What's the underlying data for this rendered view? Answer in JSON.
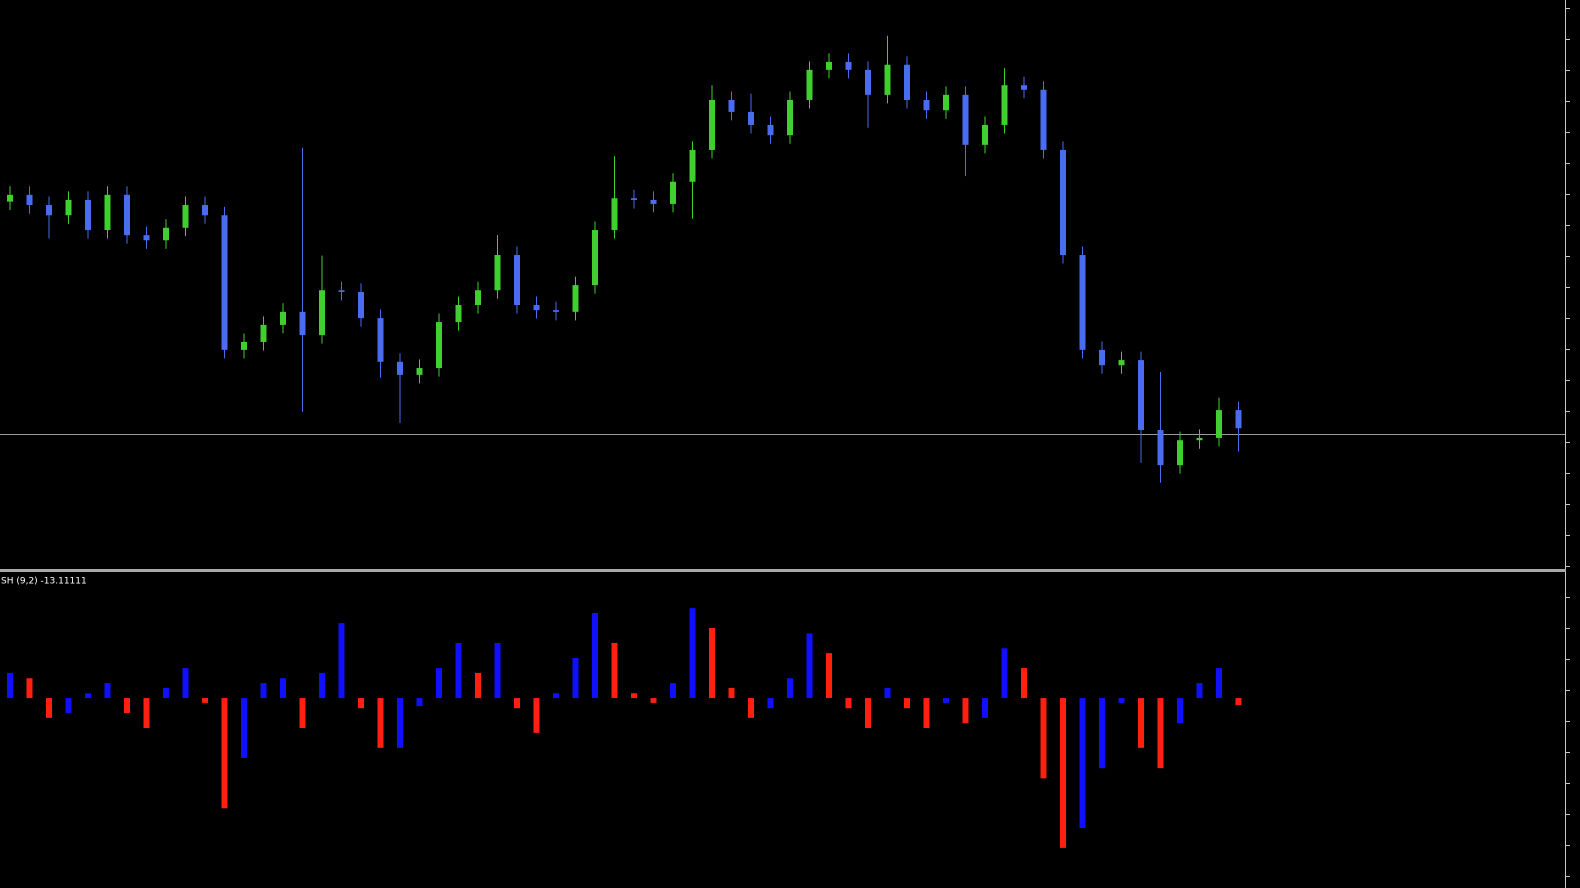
{
  "chart_data": [
    {
      "type": "candlestick",
      "open": [
        64.5,
        65.7,
        63.9,
        62.1,
        64.8,
        59.5,
        65.7,
        58.6,
        57.7,
        59.9,
        63.9,
        62.1,
        38.4,
        39.8,
        42.8,
        45.1,
        41.0,
        48.9,
        48.6,
        44.0,
        36.3,
        34.0,
        35.2,
        43.3,
        46.3,
        48.9,
        55.1,
        46.3,
        45.4,
        45.1,
        49.8,
        59.5,
        65.1,
        64.8,
        64.1,
        68.0,
        73.6,
        82.4,
        80.3,
        78.0,
        76.2,
        82.4,
        87.7,
        89.1,
        87.7,
        83.3,
        88.6,
        82.4,
        80.6,
        83.3,
        74.5,
        78.0,
        85.0,
        84.2,
        73.6,
        55.1,
        38.4,
        35.7,
        36.6,
        24.3,
        18.1,
        22.5,
        22.9,
        27.8
      ],
      "high": [
        67.2,
        67.2,
        65.4,
        66.3,
        66.3,
        67.2,
        67.2,
        60.1,
        61.4,
        65.4,
        65.4,
        63.6,
        41.3,
        44.3,
        46.6,
        74.0,
        55.0,
        50.4,
        50.1,
        45.5,
        37.8,
        36.7,
        44.8,
        47.8,
        50.4,
        58.6,
        56.6,
        47.8,
        46.9,
        51.3,
        61.0,
        72.5,
        66.6,
        66.3,
        69.5,
        75.1,
        85.0,
        83.9,
        83.5,
        79.5,
        83.9,
        89.2,
        90.6,
        90.6,
        89.2,
        93.7,
        90.1,
        83.9,
        84.8,
        84.8,
        79.5,
        88.0,
        86.5,
        85.7,
        75.1,
        56.6,
        39.9,
        38.1,
        38.1,
        34.5,
        24.0,
        24.4,
        30.0,
        29.3
      ],
      "low": [
        63.0,
        62.4,
        58.0,
        60.6,
        58.0,
        58.0,
        57.1,
        56.2,
        56.2,
        58.4,
        60.6,
        36.9,
        36.9,
        38.3,
        41.3,
        27.5,
        39.5,
        47.1,
        42.5,
        33.5,
        25.5,
        32.5,
        33.7,
        41.8,
        44.8,
        47.4,
        44.8,
        43.9,
        43.6,
        43.6,
        48.3,
        58.0,
        63.3,
        62.6,
        62.6,
        61.5,
        72.1,
        78.8,
        76.5,
        74.7,
        74.7,
        80.9,
        86.2,
        86.2,
        77.5,
        81.8,
        80.9,
        79.1,
        79.1,
        69.0,
        73.0,
        76.5,
        82.7,
        72.1,
        53.6,
        36.9,
        34.2,
        34.2,
        18.5,
        15.0,
        16.6,
        21.0,
        21.4,
        20.5
      ],
      "close": [
        65.7,
        63.9,
        62.1,
        64.8,
        59.5,
        65.7,
        58.6,
        57.7,
        59.9,
        63.9,
        62.1,
        38.4,
        39.8,
        42.8,
        45.1,
        41.0,
        48.9,
        48.6,
        44.0,
        36.3,
        34.0,
        35.2,
        43.3,
        46.3,
        48.9,
        55.1,
        46.3,
        45.4,
        45.1,
        49.8,
        59.5,
        65.1,
        64.8,
        64.1,
        68.0,
        73.6,
        82.4,
        80.3,
        78.0,
        76.2,
        82.4,
        87.7,
        89.1,
        87.7,
        83.3,
        88.6,
        82.4,
        80.6,
        83.3,
        74.5,
        78.0,
        85.0,
        84.2,
        73.6,
        55.1,
        38.4,
        35.7,
        36.6,
        24.3,
        18.1,
        22.5,
        22.9,
        27.8,
        24.6
      ],
      "ylim": [
        0,
        100
      ],
      "up_color": "#3fcf2f",
      "down_color": "#4a6cf0",
      "price_line": 23.6,
      "price_line_color": "#9a9a9a"
    },
    {
      "type": "bar",
      "title": "SH (9,2) -13.11111",
      "values": [
        47,
        37,
        -37,
        -28,
        9,
        28,
        -28,
        -56,
        19,
        56,
        -9,
        -206,
        -112,
        28,
        37,
        -56,
        47,
        140,
        -19,
        -93,
        -93,
        -15,
        56,
        103,
        47,
        103,
        -19,
        -65,
        9,
        75,
        159,
        103,
        9,
        -9,
        28,
        168,
        131,
        19,
        -37,
        -19,
        37,
        121,
        84,
        -19,
        -56,
        19,
        -19,
        -56,
        -9,
        -47,
        -37,
        93,
        56,
        -150,
        -280,
        -243,
        -131,
        -9,
        -93,
        -131,
        -47,
        28,
        56,
        -13.11111
      ],
      "ylim": [
        -340,
        230
      ],
      "up_color": "#1010ff",
      "down_color": "#ff2010"
    }
  ]
}
